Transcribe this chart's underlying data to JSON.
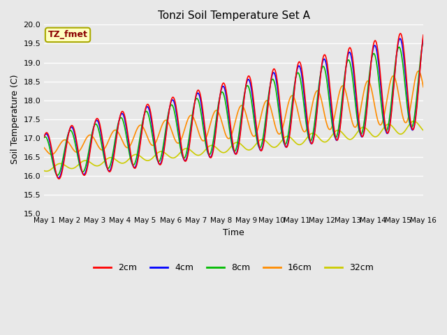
{
  "title": "Tonzi Soil Temperature Set A",
  "xlabel": "Time",
  "ylabel": "Soil Temperature (C)",
  "ylim": [
    15.0,
    20.0
  ],
  "yticks": [
    15.0,
    15.5,
    16.0,
    16.5,
    17.0,
    17.5,
    18.0,
    18.5,
    19.0,
    19.5,
    20.0
  ],
  "xtick_labels": [
    "May 1",
    "May 2",
    "May 3",
    "May 4",
    "May 5",
    "May 6",
    "May 7",
    "May 8",
    "May 9",
    "May 10",
    "May 11",
    "May 12",
    "May 13",
    "May 14",
    "May 15",
    "May 16"
  ],
  "annotation_text": "TZ_fmet",
  "annotation_color": "#8B0000",
  "annotation_bg": "#FFFFC0",
  "annotation_border": "#AAAA00",
  "colors": {
    "2cm": "#FF0000",
    "4cm": "#0000FF",
    "8cm": "#00BB00",
    "16cm": "#FF8C00",
    "32cm": "#CCCC00"
  },
  "legend_labels": [
    "2cm",
    "4cm",
    "8cm",
    "16cm",
    "32cm"
  ],
  "background_color": "#E8E8E8",
  "plot_bg_color": "#E8E8E8",
  "grid_color": "#FFFFFF",
  "figwidth": 6.4,
  "figheight": 4.8,
  "dpi": 100
}
